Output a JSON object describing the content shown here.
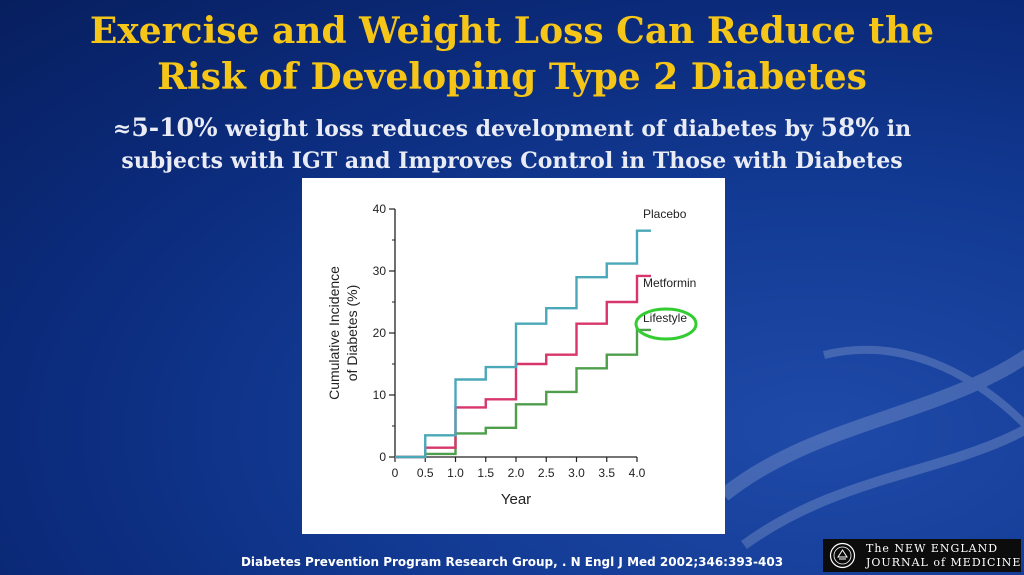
{
  "slide": {
    "title_line1": "Exercise and Weight Loss Can Reduce the",
    "title_line2": "Risk of Developing Type 2 Diabetes",
    "subtitle": {
      "approx": "≈",
      "pct1": "5-10%",
      "mid": " weight loss reduces development of diabetes by ",
      "pct2": "58%",
      "end": " in",
      "line2": "subjects with IGT and Improves Control in Those with Diabetes"
    },
    "citation": "Diabetes Prevention Program Research Group, . N Engl J Med 2002;346:393-403",
    "logo": {
      "line1": "The NEW ENGLAND",
      "line2": "JOURNAL of MEDICINE"
    }
  },
  "colors": {
    "title": "#f5c518",
    "placebo": "#4aa8b8",
    "metformin": "#d8356a",
    "lifestyle": "#4e9e4c",
    "highlight": "#33cc33"
  },
  "chart_data": {
    "type": "line",
    "step": true,
    "xlabel": "Year",
    "ylabel": "Cumulative Incidence of Diabetes (%)",
    "ylabel_lines": [
      "Cumulative Incidence",
      "of Diabetes (%)"
    ],
    "xlim": [
      0,
      4.0
    ],
    "ylim": [
      0,
      40
    ],
    "x_ticks": [
      "0",
      "0.5",
      "1.0",
      "1.5",
      "2.0",
      "2.5",
      "3.0",
      "3.5",
      "4.0"
    ],
    "y_ticks": [
      "0",
      "10",
      "20",
      "30",
      "40"
    ],
    "grid": false,
    "legend": "direct labels at line ends",
    "highlighted_series": "Lifestyle",
    "series": [
      {
        "name": "Placebo",
        "color": "#4aa8b8",
        "x": [
          0,
          0.5,
          1.0,
          1.5,
          2.0,
          2.5,
          3.0,
          3.5,
          4.0
        ],
        "y": [
          0,
          3.5,
          12.5,
          14.5,
          21.5,
          24,
          29,
          31.2,
          36.5
        ]
      },
      {
        "name": "Metformin",
        "color": "#d8356a",
        "x": [
          0,
          0.5,
          1.0,
          1.5,
          2.0,
          2.5,
          3.0,
          3.5,
          4.0
        ],
        "y": [
          0,
          1.5,
          8,
          9.3,
          15,
          16.5,
          21.5,
          25,
          29.2
        ]
      },
      {
        "name": "Lifestyle",
        "color": "#4e9e4c",
        "x": [
          0,
          0.5,
          1.0,
          1.5,
          2.0,
          2.5,
          3.0,
          3.5,
          4.0
        ],
        "y": [
          0,
          0.5,
          3.8,
          4.7,
          8.5,
          10.5,
          14.3,
          16.5,
          20.5
        ]
      }
    ]
  }
}
